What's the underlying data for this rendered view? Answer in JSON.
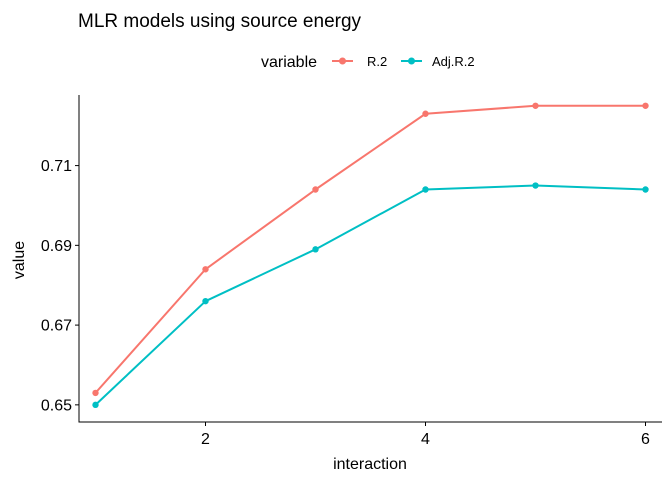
{
  "chart_data": {
    "type": "line",
    "title": "MLR models using source energy",
    "xlabel": "interaction",
    "ylabel": "value",
    "x": [
      1,
      2,
      3,
      4,
      5,
      6
    ],
    "xticks": [
      "2",
      "4",
      "6"
    ],
    "yticks": [
      "0.65",
      "0.67",
      "0.69",
      "0.71"
    ],
    "xlim": [
      0.85,
      6.15
    ],
    "ylim": [
      0.6457,
      0.7277
    ],
    "grid": false,
    "legend": {
      "title": "variable",
      "position": "top"
    },
    "series": [
      {
        "name": "R.2",
        "color": "#F8766D",
        "values": [
          0.653,
          0.684,
          0.704,
          0.723,
          0.725,
          0.725
        ]
      },
      {
        "name": "Adj.R.2",
        "color": "#00BFC4",
        "values": [
          0.65,
          0.676,
          0.689,
          0.704,
          0.705,
          0.704
        ]
      }
    ]
  }
}
